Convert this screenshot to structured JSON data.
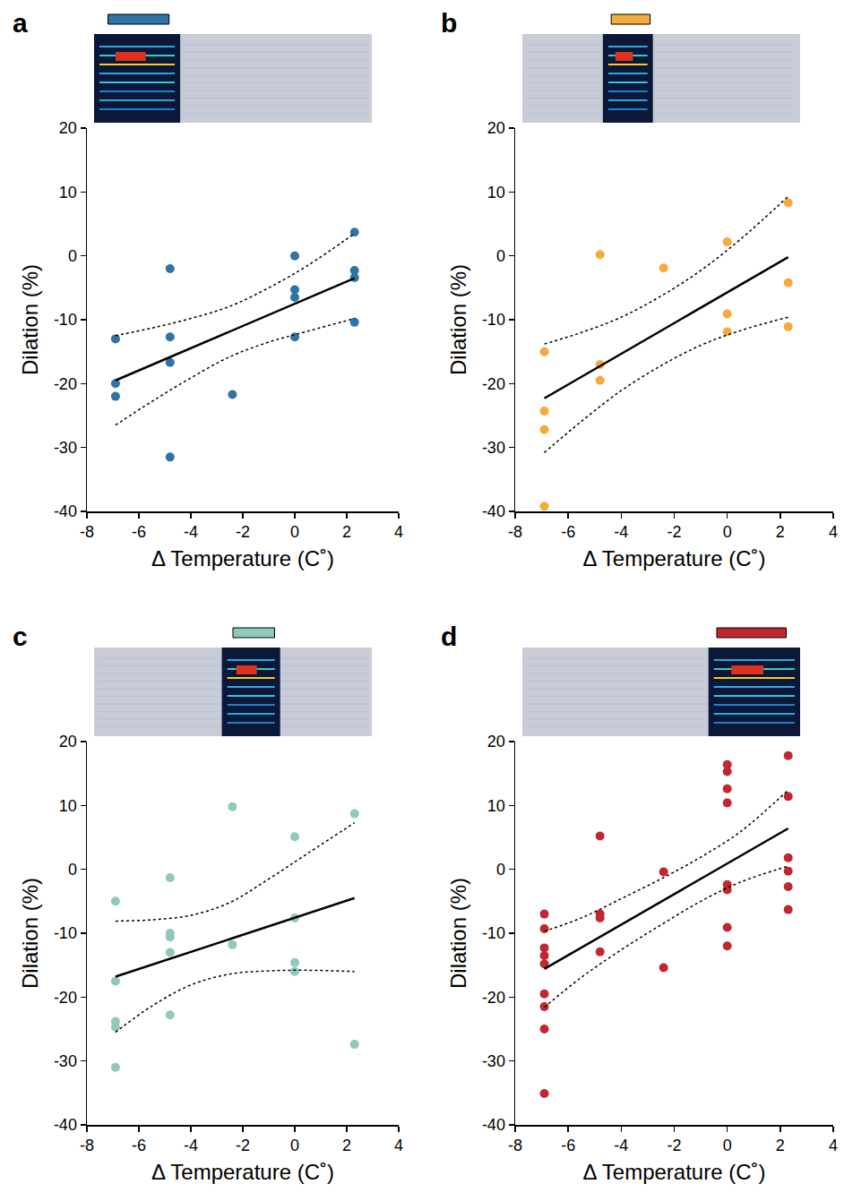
{
  "chart_data": [
    {
      "type": "scatter",
      "title": "a",
      "x_label": "Δ Temperature (C˚)",
      "y_label": "Dilation (%)",
      "xlim": [
        -8,
        4
      ],
      "xticks": [
        -8,
        -6,
        -4,
        -2,
        0,
        2,
        4
      ],
      "ylim": [
        -40,
        20
      ],
      "yticks": [
        -40,
        -30,
        -20,
        -10,
        0,
        10,
        20
      ],
      "grid": false,
      "series": [
        {
          "type": "scatter",
          "marker": "circle",
          "color": "#2f74a6",
          "x": [
            -6.9,
            -6.9,
            -6.9,
            -4.8,
            -4.8,
            -4.8,
            -4.8,
            -2.4,
            0,
            0,
            0,
            0,
            2.3,
            2.3,
            2.3,
            2.3
          ],
          "values": [
            -13,
            -20,
            -22,
            -2,
            -12.7,
            -16.7,
            -31.5,
            -21.7,
            0,
            -5.3,
            -6.5,
            -12.7,
            3.7,
            -2.3,
            -3.4,
            -10.4
          ]
        },
        {
          "type": "line",
          "line_style": "solid",
          "color": "#000000",
          "x": [
            -6.9,
            2.3
          ],
          "values": [
            -19.5,
            -3.5
          ]
        },
        {
          "type": "line",
          "line_style": "dotted",
          "color": "#000000",
          "x": [
            -6.9,
            -5.5,
            -4,
            -2.5,
            -1,
            0.5,
            2.3
          ],
          "values": [
            -12.5,
            -11.3,
            -9.8,
            -7.9,
            -5,
            -1.5,
            3.5
          ]
        },
        {
          "type": "line",
          "line_style": "dotted",
          "color": "#000000",
          "x": [
            -6.9,
            -5.5,
            -4,
            -2.5,
            -1,
            0.5,
            2.3
          ],
          "values": [
            -26.5,
            -22.8,
            -19.1,
            -15.8,
            -13.5,
            -11.8,
            -9.8
          ]
        }
      ]
    },
    {
      "type": "scatter",
      "title": "b",
      "x_label": "Δ Temperature (C˚)",
      "y_label": "Dilation (%)",
      "xlim": [
        -8,
        4
      ],
      "xticks": [
        -8,
        -6,
        -4,
        -2,
        0,
        2,
        4
      ],
      "ylim": [
        -40,
        20
      ],
      "yticks": [
        -40,
        -30,
        -20,
        -10,
        0,
        10,
        20
      ],
      "grid": false,
      "series": [
        {
          "type": "scatter",
          "marker": "circle",
          "color": "#f5aa3c",
          "x": [
            -6.9,
            -6.9,
            -6.9,
            -6.9,
            -4.8,
            -4.8,
            -4.8,
            -2.4,
            0,
            0,
            0,
            2.3,
            2.3,
            2.3
          ],
          "values": [
            -15,
            -24.3,
            -27.2,
            -39.2,
            0.2,
            -17,
            -19.5,
            -1.9,
            2.2,
            -9.1,
            -11.9,
            8.3,
            -4.2,
            -11.1
          ]
        },
        {
          "type": "line",
          "line_style": "solid",
          "color": "#000000",
          "x": [
            -6.9,
            2.3
          ],
          "values": [
            -22.3,
            -0.2
          ]
        },
        {
          "type": "line",
          "line_style": "dotted",
          "color": "#000000",
          "x": [
            -6.9,
            -5.5,
            -4,
            -2.5,
            -1,
            0.5,
            2.3
          ],
          "values": [
            -13.8,
            -12,
            -9.6,
            -6.3,
            -2.3,
            2.6,
            9.3
          ]
        },
        {
          "type": "line",
          "line_style": "dotted",
          "color": "#000000",
          "x": [
            -6.9,
            -5.5,
            -4,
            -2.5,
            -1,
            0.5,
            2.3
          ],
          "values": [
            -30.8,
            -25.9,
            -21.1,
            -17.2,
            -14,
            -11.7,
            -9.6
          ]
        }
      ]
    },
    {
      "type": "scatter",
      "title": "c",
      "x_label": "Δ Temperature (C˚)",
      "y_label": "Dilation (%)",
      "xlim": [
        -8,
        4
      ],
      "xticks": [
        -8,
        -6,
        -4,
        -2,
        0,
        2,
        4
      ],
      "ylim": [
        -40,
        20
      ],
      "yticks": [
        -40,
        -30,
        -20,
        -10,
        0,
        10,
        20
      ],
      "grid": false,
      "series": [
        {
          "type": "scatter",
          "marker": "circle",
          "color": "#8fc8bc",
          "x": [
            -6.9,
            -6.9,
            -6.9,
            -6.9,
            -6.9,
            -4.8,
            -4.8,
            -4.8,
            -4.8,
            -4.8,
            -2.4,
            -2.4,
            0,
            0,
            0,
            0,
            2.3,
            2.3
          ],
          "values": [
            -5,
            -17.5,
            -23.8,
            -24.7,
            -31,
            -1.3,
            -10,
            -10.6,
            -13,
            -22.8,
            9.8,
            -11.8,
            5.1,
            -7.6,
            -14.6,
            -16,
            8.7,
            -27.4
          ]
        },
        {
          "type": "line",
          "line_style": "solid",
          "color": "#000000",
          "x": [
            -6.9,
            2.3
          ],
          "values": [
            -16.8,
            -4.5
          ]
        },
        {
          "type": "line",
          "line_style": "dotted",
          "color": "#000000",
          "x": [
            -6.9,
            -5.5,
            -4,
            -2.5,
            -1,
            0.5,
            2.3
          ],
          "values": [
            -8.1,
            -7.9,
            -7.2,
            -5.2,
            -1.5,
            2.5,
            7.3
          ]
        },
        {
          "type": "line",
          "line_style": "dotted",
          "color": "#000000",
          "x": [
            -6.9,
            -5.5,
            -4,
            -2.5,
            -1,
            0.5,
            2.3
          ],
          "values": [
            -25.5,
            -21.4,
            -18.1,
            -16.4,
            -15.9,
            -15.8,
            -16
          ]
        }
      ]
    },
    {
      "type": "scatter",
      "title": "d",
      "x_label": "Δ Temperature (C˚)",
      "y_label": "Dilation (%)",
      "xlim": [
        -8,
        4
      ],
      "xticks": [
        -8,
        -6,
        -4,
        -2,
        0,
        2,
        4
      ],
      "ylim": [
        -40,
        20
      ],
      "yticks": [
        -40,
        -30,
        -20,
        -10,
        0,
        10,
        20
      ],
      "grid": false,
      "series": [
        {
          "type": "scatter",
          "marker": "circle",
          "color": "#c0272f",
          "x": [
            -6.9,
            -6.9,
            -6.9,
            -6.9,
            -6.9,
            -6.9,
            -6.9,
            -6.9,
            -6.9,
            -4.8,
            -4.8,
            -4.8,
            -4.8,
            -2.4,
            -2.4,
            0,
            0,
            0,
            0,
            0,
            0,
            0,
            0,
            2.3,
            2.3,
            2.3,
            2.3,
            2.3,
            2.3
          ],
          "values": [
            -7,
            -9.3,
            -12.3,
            -13.5,
            -14.8,
            -19.5,
            -21.5,
            -25,
            -35.1,
            5.2,
            -7,
            -7.6,
            -12.9,
            -0.4,
            -15.4,
            16.4,
            15.3,
            12.6,
            10.4,
            -2.4,
            -3.2,
            -9.1,
            -12,
            17.8,
            11.4,
            1.8,
            -0.3,
            -2.7,
            -6.3
          ]
        },
        {
          "type": "line",
          "line_style": "solid",
          "color": "#000000",
          "x": [
            -6.9,
            2.3
          ],
          "values": [
            -15.6,
            6.4
          ]
        },
        {
          "type": "line",
          "line_style": "dotted",
          "color": "#000000",
          "x": [
            -6.9,
            -5.5,
            -4,
            -2.5,
            -1,
            0.5,
            2.3
          ],
          "values": [
            -9.7,
            -7.6,
            -4.6,
            -1.5,
            1.9,
            5.9,
            12.4
          ]
        },
        {
          "type": "line",
          "line_style": "dotted",
          "color": "#000000",
          "x": [
            -6.9,
            -5.5,
            -4,
            -2.5,
            -1,
            0.5,
            2.3
          ],
          "values": [
            -21.6,
            -16.9,
            -12.6,
            -8.7,
            -5,
            -2,
            0.5
          ]
        }
      ]
    }
  ]
}
